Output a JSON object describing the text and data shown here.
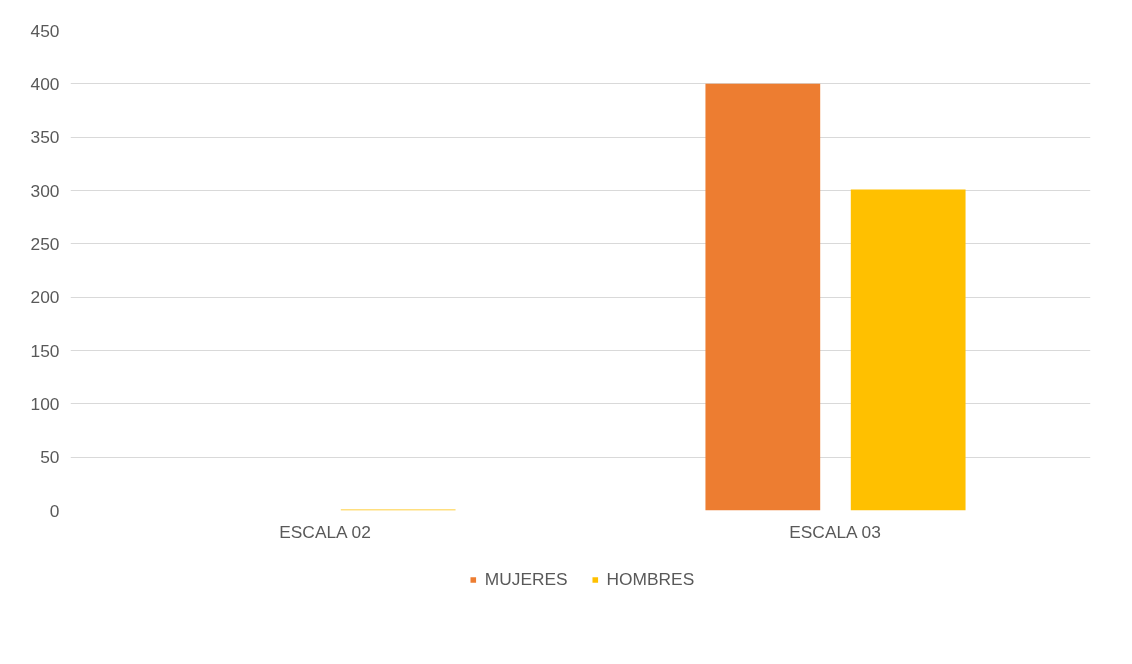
{
  "chart_data": {
    "type": "bar",
    "categories": [
      "ESCALA 02",
      "ESCALA 03"
    ],
    "series": [
      {
        "name": "MUJERES",
        "color": "#ed7d31",
        "values": [
          0,
          400
        ]
      },
      {
        "name": "HOMBRES",
        "color": "#ffc000",
        "values": [
          1,
          301
        ]
      }
    ],
    "ylim": [
      0,
      450
    ],
    "yticks": [
      0,
      50,
      100,
      150,
      200,
      250,
      300,
      350,
      400,
      450
    ],
    "grid": "y",
    "legend": "bottom"
  }
}
